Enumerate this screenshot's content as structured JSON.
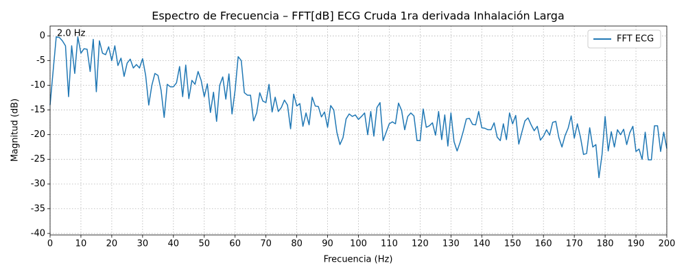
{
  "chart_data": {
    "type": "line",
    "title": "Espectro de Frecuencia – FFT[dB] ECG Cruda 1ra derivada Inhalación Larga",
    "x_label": "Frecuencia (Hz)",
    "y_label": "Magnitud (dB)",
    "xlim": [
      0,
      200
    ],
    "ylim": [
      -40.3,
      2
    ],
    "xticks": [
      0,
      10,
      20,
      30,
      40,
      50,
      60,
      70,
      80,
      90,
      100,
      110,
      120,
      130,
      140,
      150,
      160,
      170,
      180,
      190,
      200
    ],
    "yticks": [
      0,
      -5,
      -10,
      -15,
      -20,
      -25,
      -30,
      -35,
      -40
    ],
    "grid": true,
    "legend": "upper right",
    "annotation": {
      "text": "2.0 Hz",
      "x": 2,
      "y": -0.2,
      "color": "#ff0000"
    },
    "x": [
      0,
      1,
      2,
      3,
      4,
      5,
      6,
      7,
      8,
      9,
      10,
      11,
      12,
      13,
      14,
      15,
      16,
      17,
      18,
      19,
      20,
      21,
      22,
      23,
      24,
      25,
      26,
      27,
      28,
      29,
      30,
      31,
      32,
      33,
      34,
      35,
      36,
      37,
      38,
      39,
      40,
      41,
      42,
      43,
      44,
      45,
      46,
      47,
      48,
      49,
      50,
      51,
      52,
      53,
      54,
      55,
      56,
      57,
      58,
      59,
      60,
      61,
      62,
      63,
      64,
      65,
      66,
      67,
      68,
      69,
      70,
      71,
      72,
      73,
      74,
      75,
      76,
      77,
      78,
      79,
      80,
      81,
      82,
      83,
      84,
      85,
      86,
      87,
      88,
      89,
      90,
      91,
      92,
      93,
      94,
      95,
      96,
      97,
      98,
      99,
      100,
      101,
      102,
      103,
      104,
      105,
      106,
      107,
      108,
      109,
      110,
      111,
      112,
      113,
      114,
      115,
      116,
      117,
      118,
      119,
      120,
      121,
      122,
      123,
      124,
      125,
      126,
      127,
      128,
      129,
      130,
      131,
      132,
      133,
      134,
      135,
      136,
      137,
      138,
      139,
      140,
      141,
      142,
      143,
      144,
      145,
      146,
      147,
      148,
      149,
      150,
      151,
      152,
      153,
      154,
      155,
      156,
      157,
      158,
      159,
      160,
      161,
      162,
      163,
      164,
      165,
      166,
      167,
      168,
      169,
      170,
      171,
      172,
      173,
      174,
      175,
      176,
      177,
      178,
      179,
      180,
      181,
      182,
      183,
      184,
      185,
      186,
      187,
      188,
      189,
      190,
      191,
      192,
      193,
      194,
      195,
      196,
      197,
      198,
      199,
      200
    ],
    "series": [
      {
        "name": "FFT ECG",
        "color": "#1f77b4",
        "values": [
          -14,
          -7,
          -0.2,
          -0.3,
          -1,
          -2,
          -12.3,
          -2,
          -7.6,
          -0.2,
          -3.5,
          -2.6,
          -2.7,
          -7.2,
          -0.7,
          -11.3,
          -1,
          -3.5,
          -3.8,
          -2.2,
          -5,
          -2,
          -6,
          -4.5,
          -8.2,
          -5.5,
          -4.7,
          -6.5,
          -5.8,
          -6.5,
          -4.6,
          -8,
          -14,
          -10,
          -7.6,
          -8,
          -11,
          -16.5,
          -9.8,
          -10.3,
          -10.3,
          -9.5,
          -6.2,
          -12.3,
          -5.9,
          -12.7,
          -9,
          -9.8,
          -7.2,
          -9,
          -12.3,
          -9.7,
          -15.5,
          -11.4,
          -17.3,
          -10,
          -8.3,
          -12.8,
          -7.7,
          -15.8,
          -11,
          -4.2,
          -5,
          -11.5,
          -12,
          -12,
          -17.2,
          -15.6,
          -11.5,
          -13.2,
          -13.5,
          -9.8,
          -15.4,
          -12.4,
          -15.3,
          -14.5,
          -13,
          -14,
          -18.8,
          -11.8,
          -14.2,
          -13.7,
          -18.3,
          -15.6,
          -18,
          -12.4,
          -14.2,
          -14.3,
          -16.4,
          -15.4,
          -18.5,
          -14.1,
          -15,
          -19.5,
          -22,
          -20.6,
          -16.8,
          -15.8,
          -16.3,
          -16,
          -16.9,
          -16.3,
          -15.6,
          -20,
          -15.3,
          -20.3,
          -14.5,
          -13.5,
          -21.2,
          -19.5,
          -17.8,
          -17.4,
          -17.8,
          -13.6,
          -15.1,
          -19,
          -16.3,
          -15.6,
          -16.2,
          -21.2,
          -21.2,
          -14.8,
          -18.5,
          -18.2,
          -17.6,
          -20.1,
          -15.3,
          -21,
          -16,
          -22.3,
          -15.6,
          -21.4,
          -23.3,
          -21.5,
          -19.3,
          -16.8,
          -16.7,
          -17.9,
          -18,
          -15.3,
          -18.6,
          -18.7,
          -19,
          -19,
          -17.6,
          -20.5,
          -21.2,
          -17.8,
          -21,
          -15.6,
          -17.8,
          -16.1,
          -21.9,
          -19.5,
          -17.2,
          -16.6,
          -18,
          -19.2,
          -18.3,
          -21.1,
          -20.3,
          -19,
          -20.1,
          -17.5,
          -17.3,
          -20.6,
          -22.5,
          -20.2,
          -18.7,
          -16.2,
          -20.7,
          -17.8,
          -20.5,
          -24,
          -23.8,
          -18.6,
          -22.5,
          -22,
          -28.7,
          -24,
          -16.3,
          -23.3,
          -19.4,
          -22.5,
          -19,
          -20,
          -18.9,
          -22,
          -19.6,
          -18.3,
          -23.4,
          -22.9,
          -25,
          -19.5,
          -25.1,
          -25.1,
          -18.2,
          -18.2,
          -23.4,
          -19.5,
          -22.8
        ]
      }
    ]
  }
}
